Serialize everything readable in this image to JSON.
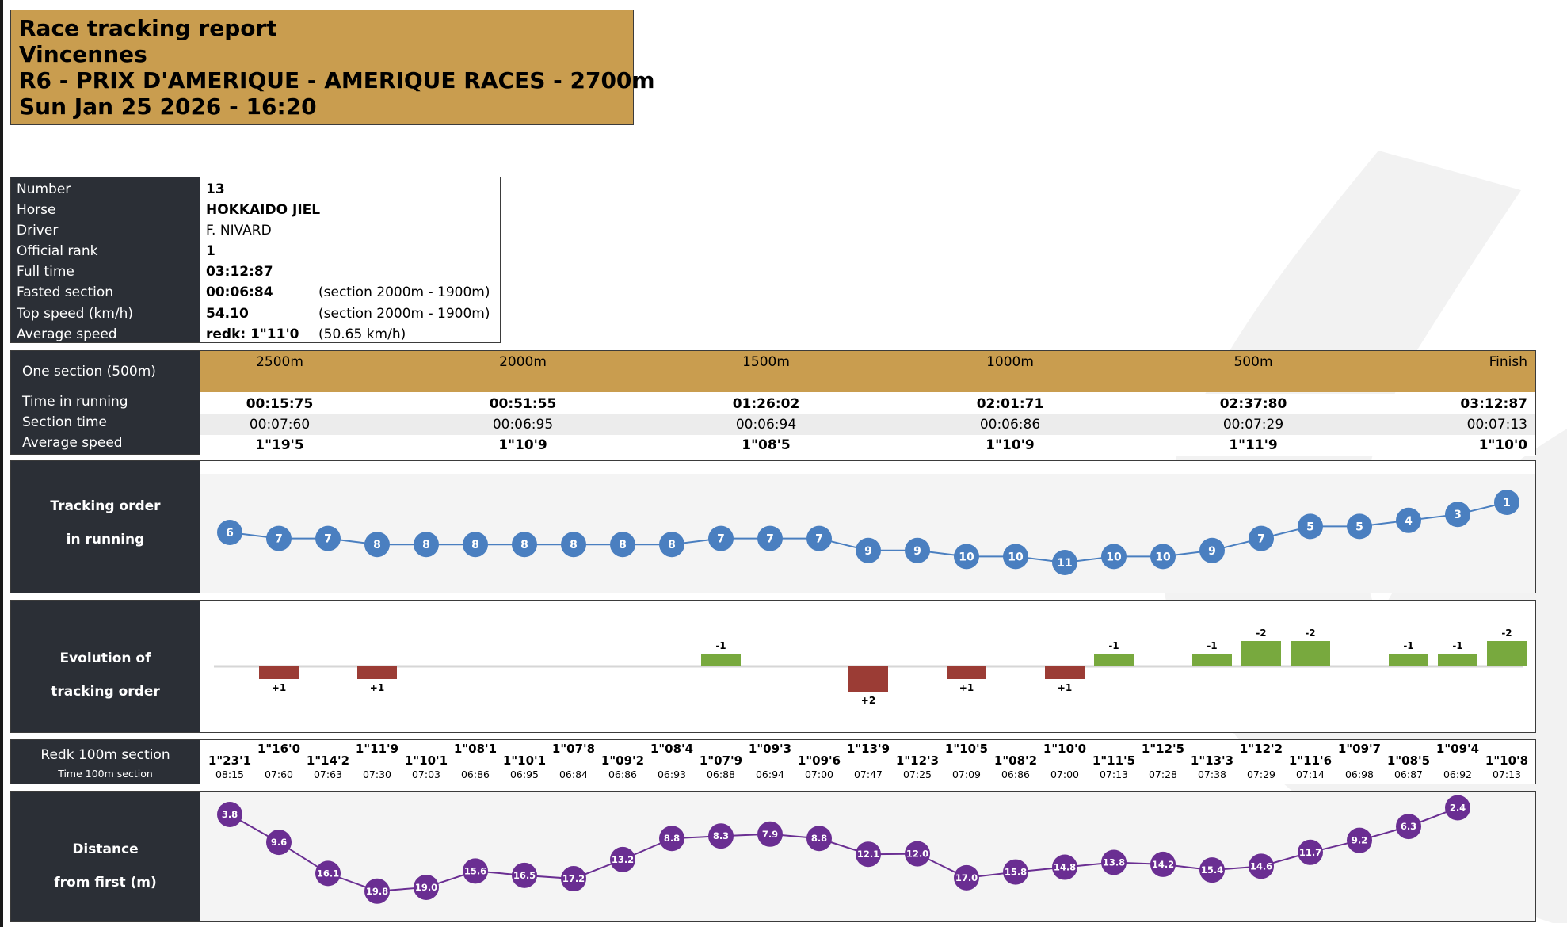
{
  "report": {
    "title": "Race tracking report",
    "venue": "Vincennes",
    "race": "R6 - PRIX D'AMERIQUE - AMERIQUE RACES - 2700m",
    "date": "Sun Jan 25 2026 - 16:20"
  },
  "info": {
    "labels": [
      "Number",
      "Horse",
      "Driver",
      "Official rank",
      "Full time",
      "Fasted section",
      "Top speed (km/h)",
      "Average speed"
    ],
    "number": "13",
    "horse": "HOKKAIDO JIEL",
    "driver": "F. NIVARD",
    "official_rank": "1",
    "full_time": "03:12:87",
    "fastest_section": "00:06:84",
    "fastest_section_note": "(section 2000m - 1900m)",
    "top_speed": "54.10",
    "top_speed_note": "(section 2000m - 1900m)",
    "average_speed": "redk: 1\"11'0",
    "average_speed_note": "(50.65 km/h)"
  },
  "sections": {
    "header_label": "One section (500m)",
    "row_labels": [
      "Time in running",
      "Section time",
      "Average speed"
    ],
    "columns": [
      "2500m",
      "2000m",
      "1500m",
      "1000m",
      "500m",
      "Finish"
    ],
    "time_in_running": [
      "00:15:75",
      "00:51:55",
      "01:26:02",
      "02:01:71",
      "02:37:80",
      "03:12:87"
    ],
    "section_time": [
      "00:07:60",
      "00:06:95",
      "00:06:94",
      "00:06:86",
      "00:07:29",
      "00:07:13"
    ],
    "average_speed": [
      "1\"19'5",
      "1\"10'9",
      "1\"08'5",
      "1\"10'9",
      "1\"11'9",
      "1\"10'0"
    ]
  },
  "panels": {
    "tracking_order": [
      "Tracking order",
      "in running"
    ],
    "evolution": [
      "Evolution of",
      "tracking order"
    ],
    "redk_title": "Redk 100m section",
    "redk_subtitle": "Time 100m section",
    "distance": [
      "Distance",
      "from first (m)"
    ]
  },
  "colors": {
    "gold": "#c99d4f",
    "dark": "#2b2f36",
    "blue": "#4a7fc0",
    "green": "#78a93e",
    "red": "#9b3c35",
    "purple": "#6a2e92"
  },
  "chart_data": [
    {
      "type": "line",
      "name": "tracking_order",
      "x": [
        1,
        2,
        3,
        4,
        5,
        6,
        7,
        8,
        9,
        10,
        11,
        12,
        13,
        14,
        15,
        16,
        17,
        18,
        19,
        20,
        21,
        22,
        23,
        24,
        25,
        26,
        27,
        28
      ],
      "values": [
        6,
        7,
        7,
        8,
        8,
        8,
        8,
        8,
        8,
        8,
        7,
        7,
        7,
        9,
        9,
        10,
        10,
        11,
        10,
        10,
        9,
        7,
        5,
        5,
        4,
        3,
        1,
        null
      ],
      "ylim": [
        1,
        11
      ],
      "inverted": true
    },
    {
      "type": "bar",
      "name": "evolution_of_tracking_order",
      "x": [
        1,
        2,
        3,
        4,
        5,
        6,
        7,
        8,
        9,
        10,
        11,
        12,
        13,
        14,
        15,
        16,
        17,
        18,
        19,
        20,
        21,
        22,
        23,
        24,
        25,
        26,
        27,
        28
      ],
      "values": [
        null,
        1,
        null,
        1,
        null,
        null,
        null,
        null,
        null,
        null,
        -1,
        null,
        null,
        2,
        null,
        1,
        null,
        1,
        -1,
        null,
        -1,
        -2,
        -2,
        null,
        -1,
        -1,
        -2,
        null
      ],
      "labels": [
        null,
        "+1",
        null,
        "+1",
        null,
        null,
        null,
        null,
        null,
        null,
        "-1",
        null,
        null,
        "+2",
        null,
        "+1",
        null,
        "+1",
        "-1",
        null,
        "-1",
        "-2",
        "-2",
        null,
        "-1",
        "-1",
        "-2",
        null
      ]
    },
    {
      "type": "table",
      "name": "redk_100m_section",
      "redk": [
        "1\"23'1",
        "1\"16'0",
        "1\"14'2",
        "1\"11'9",
        "1\"10'1",
        "1\"08'1",
        "1\"10'1",
        "1\"07'8",
        "1\"09'2",
        "1\"08'4",
        "1\"07'9",
        "1\"09'3",
        "1\"09'6",
        "1\"13'9",
        "1\"12'3",
        "1\"10'5",
        "1\"08'2",
        "1\"10'0",
        "1\"11'5",
        "1\"12'5",
        "1\"13'3",
        "1\"12'2",
        "1\"11'6",
        "1\"09'7",
        "1\"08'5",
        "1\"09'4",
        "1\"10'8"
      ],
      "time": [
        "08:15",
        "07:60",
        "07:63",
        "07:30",
        "07:03",
        "06:86",
        "06:95",
        "06:84",
        "06:86",
        "06:93",
        "06:88",
        "06:94",
        "07:00",
        "07:47",
        "07:25",
        "07:09",
        "06:86",
        "07:00",
        "07:13",
        "07:28",
        "07:38",
        "07:29",
        "07:14",
        "06:98",
        "06:87",
        "06:92",
        "07:13"
      ]
    },
    {
      "type": "line",
      "name": "distance_from_first",
      "x": [
        1,
        2,
        3,
        4,
        5,
        6,
        7,
        8,
        9,
        10,
        11,
        12,
        13,
        14,
        15,
        16,
        17,
        18,
        19,
        20,
        21,
        22,
        23,
        24,
        25,
        26,
        27,
        28
      ],
      "values": [
        3.8,
        9.6,
        16.1,
        19.8,
        19.0,
        15.6,
        16.5,
        17.2,
        13.2,
        8.8,
        8.3,
        7.9,
        8.8,
        12.1,
        12.0,
        17.0,
        15.8,
        14.8,
        13.8,
        14.2,
        15.4,
        14.6,
        11.7,
        9.2,
        6.3,
        2.4,
        null,
        null
      ],
      "ylim": [
        0,
        20
      ],
      "inverted": true
    }
  ]
}
